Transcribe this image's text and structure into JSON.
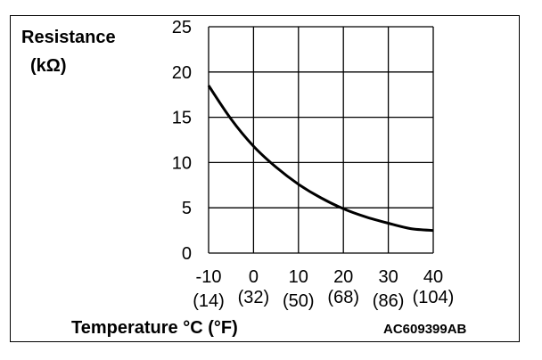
{
  "chart_data": {
    "type": "line",
    "ylabel_line1": "Resistance",
    "ylabel_line2": "(kΩ)",
    "xlabel": "Temperature °C (°F)",
    "code": "AC609399AB",
    "xlim": [
      -10,
      40
    ],
    "ylim": [
      0,
      25
    ],
    "x_ticks": [
      "-10",
      "0",
      "10",
      "20",
      "30",
      "40"
    ],
    "x_ticks_f": [
      "(14)",
      "(32)",
      "(50)",
      "(68)",
      "(86)",
      "(104)"
    ],
    "y_ticks": [
      "25",
      "20",
      "15",
      "10",
      "5",
      "0"
    ],
    "grid": true,
    "series": [
      {
        "x": [
          -10,
          -5,
          0,
          5,
          10,
          15,
          20,
          25,
          30,
          35,
          40
        ],
        "y": [
          18.5,
          14.8,
          11.8,
          9.5,
          7.6,
          6.1,
          4.9,
          4.0,
          3.3,
          2.7,
          2.5
        ]
      }
    ]
  }
}
